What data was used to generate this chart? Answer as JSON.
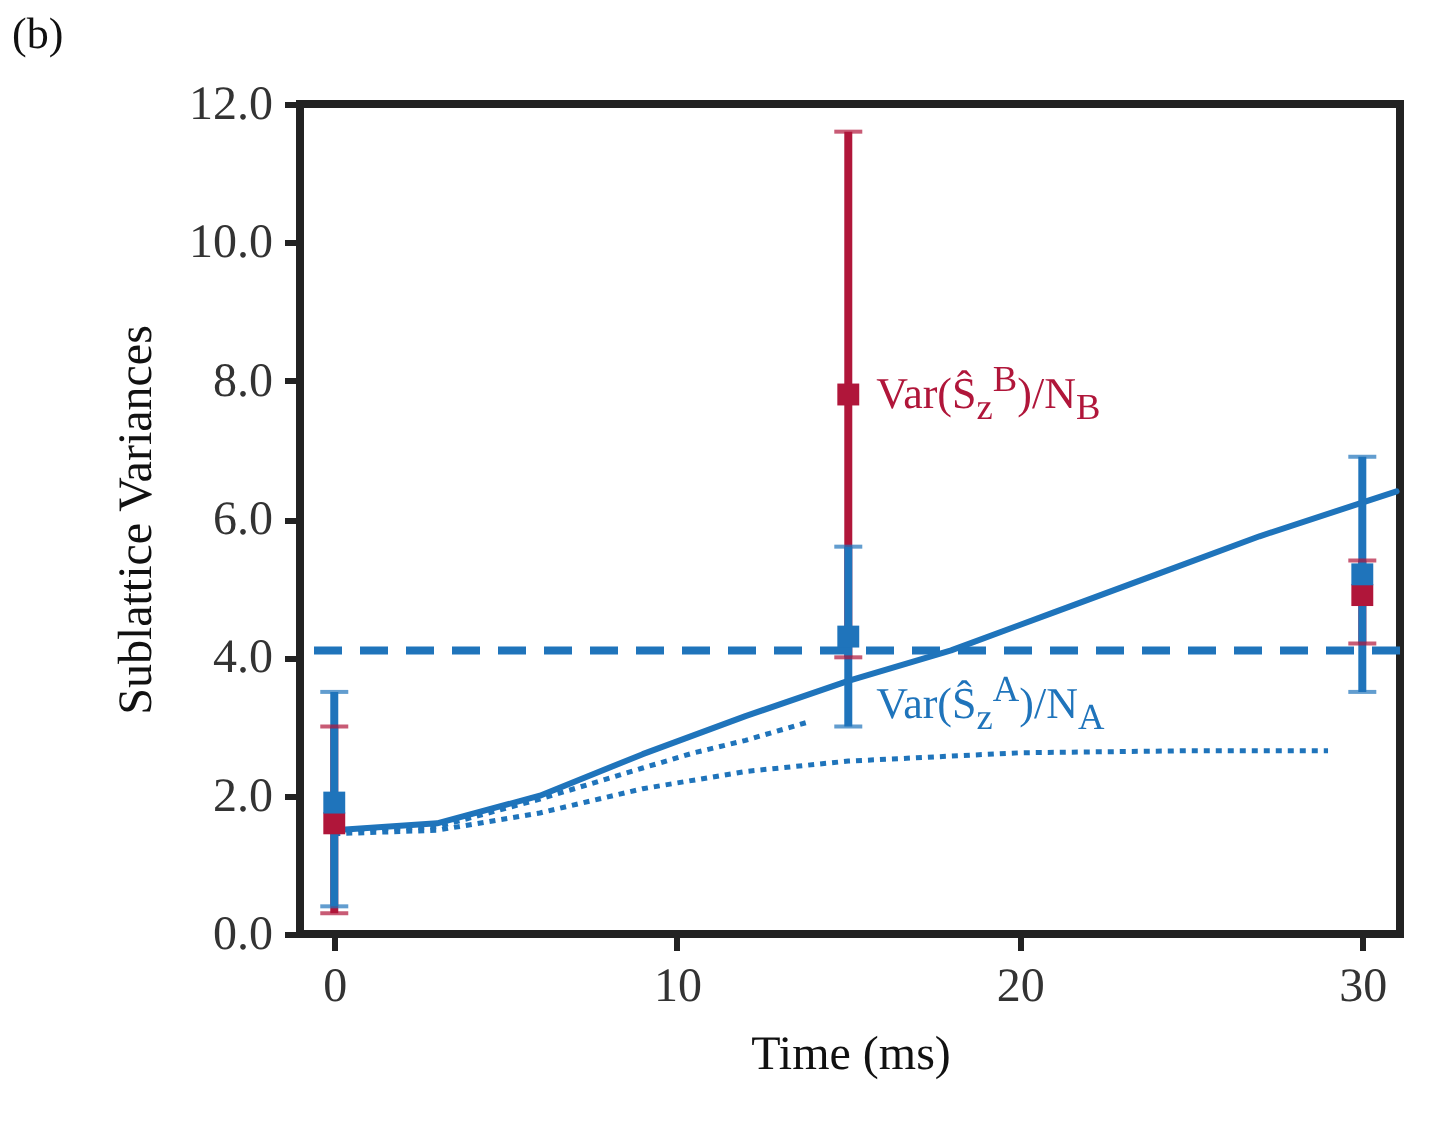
{
  "chart_data": {
    "type": "scatter",
    "xlabel": "Time (ms)",
    "ylabel": "Sublattice Variances",
    "annotations": [
      "(b)"
    ],
    "xlim": [
      -1,
      31.1
    ],
    "ylim": [
      0,
      12
    ],
    "xticks": [
      0,
      10,
      20,
      30
    ],
    "yticks": [
      {
        "value": 0,
        "label": "0.0"
      },
      {
        "value": 2,
        "label": "2.0"
      },
      {
        "value": 4,
        "label": "4.0"
      },
      {
        "value": 6,
        "label": "6.0"
      },
      {
        "value": 8,
        "label": "8.0"
      },
      {
        "value": 10,
        "label": "10.0"
      },
      {
        "value": 12,
        "label": "12.0"
      }
    ],
    "grid": false,
    "ref_lines": [
      {
        "axis": "y",
        "value": 4.1,
        "color": "#1f74bb",
        "line_style": "dashed"
      }
    ],
    "series": [
      {
        "type": "line",
        "color": "#1f74bb",
        "line_style": "solid",
        "x": [
          0,
          3,
          6,
          9,
          12,
          15,
          18,
          21,
          24,
          27,
          31
        ],
        "values": [
          1.5,
          1.6,
          2.0,
          2.6,
          3.15,
          3.66,
          4.1,
          4.65,
          5.2,
          5.75,
          6.4
        ]
      },
      {
        "type": "line",
        "color": "#1f74bb",
        "line_style": "dotted",
        "x": [
          0,
          3,
          6,
          9,
          10.5,
          12,
          13.8
        ],
        "values": [
          1.5,
          1.55,
          1.95,
          2.4,
          2.62,
          2.8,
          3.06
        ]
      },
      {
        "type": "line",
        "color": "#1f74bb",
        "line_style": "dotted",
        "x": [
          0,
          3,
          6,
          9,
          12,
          15,
          20,
          25,
          29
        ],
        "values": [
          1.45,
          1.5,
          1.75,
          2.1,
          2.35,
          2.5,
          2.62,
          2.65,
          2.65
        ]
      },
      {
        "type": "scatter",
        "name": "Var(Ŝ$_{z}$$^{B}$)/N$_{B}$",
        "color": "#b0163a",
        "marker": "square",
        "x": [
          0,
          15,
          30
        ],
        "values": [
          1.6,
          7.8,
          4.9
        ],
        "errors": [
          [
            0.3,
            3.0
          ],
          [
            4.0,
            11.6
          ],
          [
            4.2,
            5.4
          ]
        ]
      },
      {
        "type": "scatter",
        "name": "Var(Ŝ$_{z}$$^{A}$)/N$_{A}$",
        "color": "#1f74bb",
        "marker": "square",
        "x": [
          0,
          15,
          30
        ],
        "values": [
          1.9,
          4.3,
          5.2
        ],
        "errors": [
          [
            0.4,
            3.5
          ],
          [
            3.0,
            5.6
          ],
          [
            3.5,
            6.9
          ]
        ]
      }
    ]
  }
}
